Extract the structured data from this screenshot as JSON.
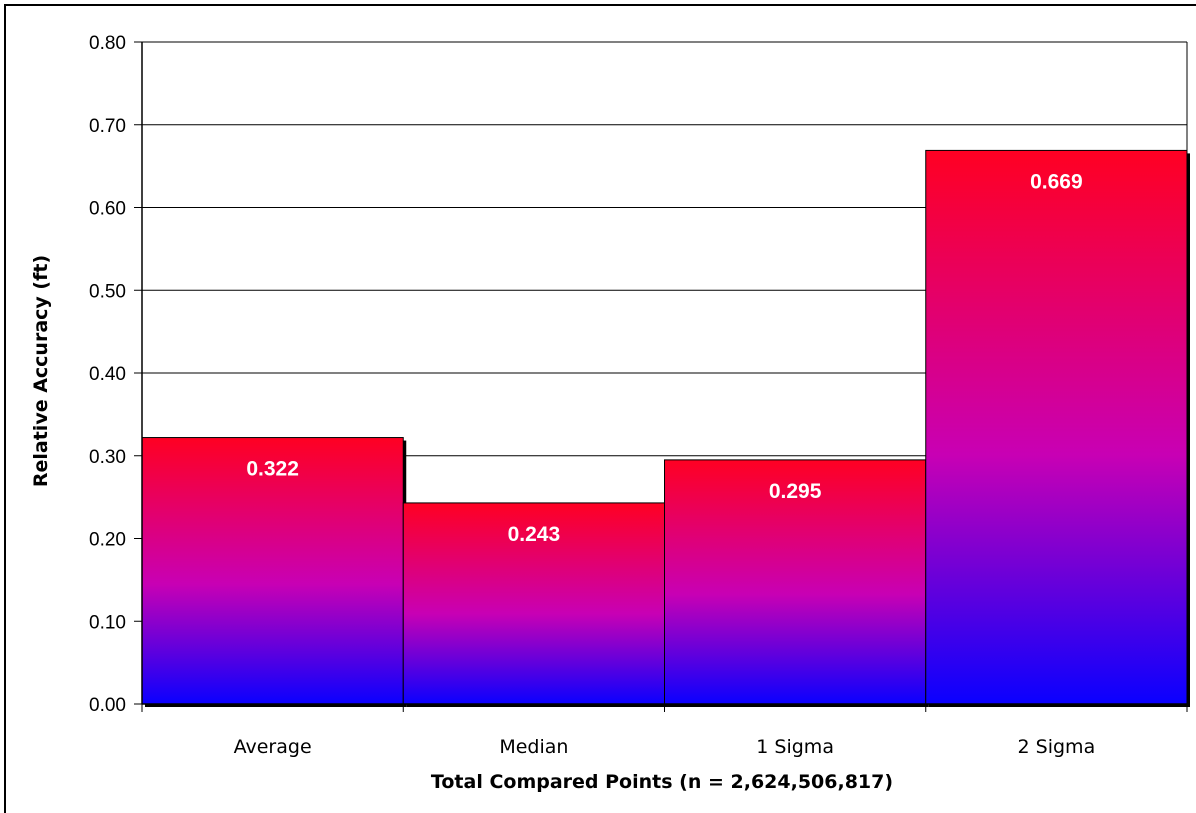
{
  "chart_data": {
    "type": "bar",
    "categories": [
      "Average",
      "Median",
      "1 Sigma",
      "2 Sigma"
    ],
    "values": [
      0.322,
      0.243,
      0.295,
      0.669
    ],
    "data_labels": [
      "0.322",
      "0.243",
      "0.295",
      "0.669"
    ],
    "xlabel": "Total Compared Points (n = 2,624,506,817)",
    "ylabel": "Relative Accuracy (ft)",
    "ylim": [
      0,
      0.8
    ],
    "yticks": [
      0,
      0.1,
      0.2,
      0.3,
      0.4,
      0.5,
      0.6,
      0.7,
      0.8
    ],
    "ytick_labels": [
      "0.00",
      "0.10",
      "0.20",
      "0.30",
      "0.40",
      "0.50",
      "0.60",
      "0.70",
      "0.80"
    ],
    "grid": true,
    "legend": "none",
    "colors": {
      "bar_top": "#ff0022",
      "bar_mid": "#c800b4",
      "bar_bottom": "#0a00ff",
      "label": "#ffffff",
      "gridline": "#000000"
    }
  }
}
